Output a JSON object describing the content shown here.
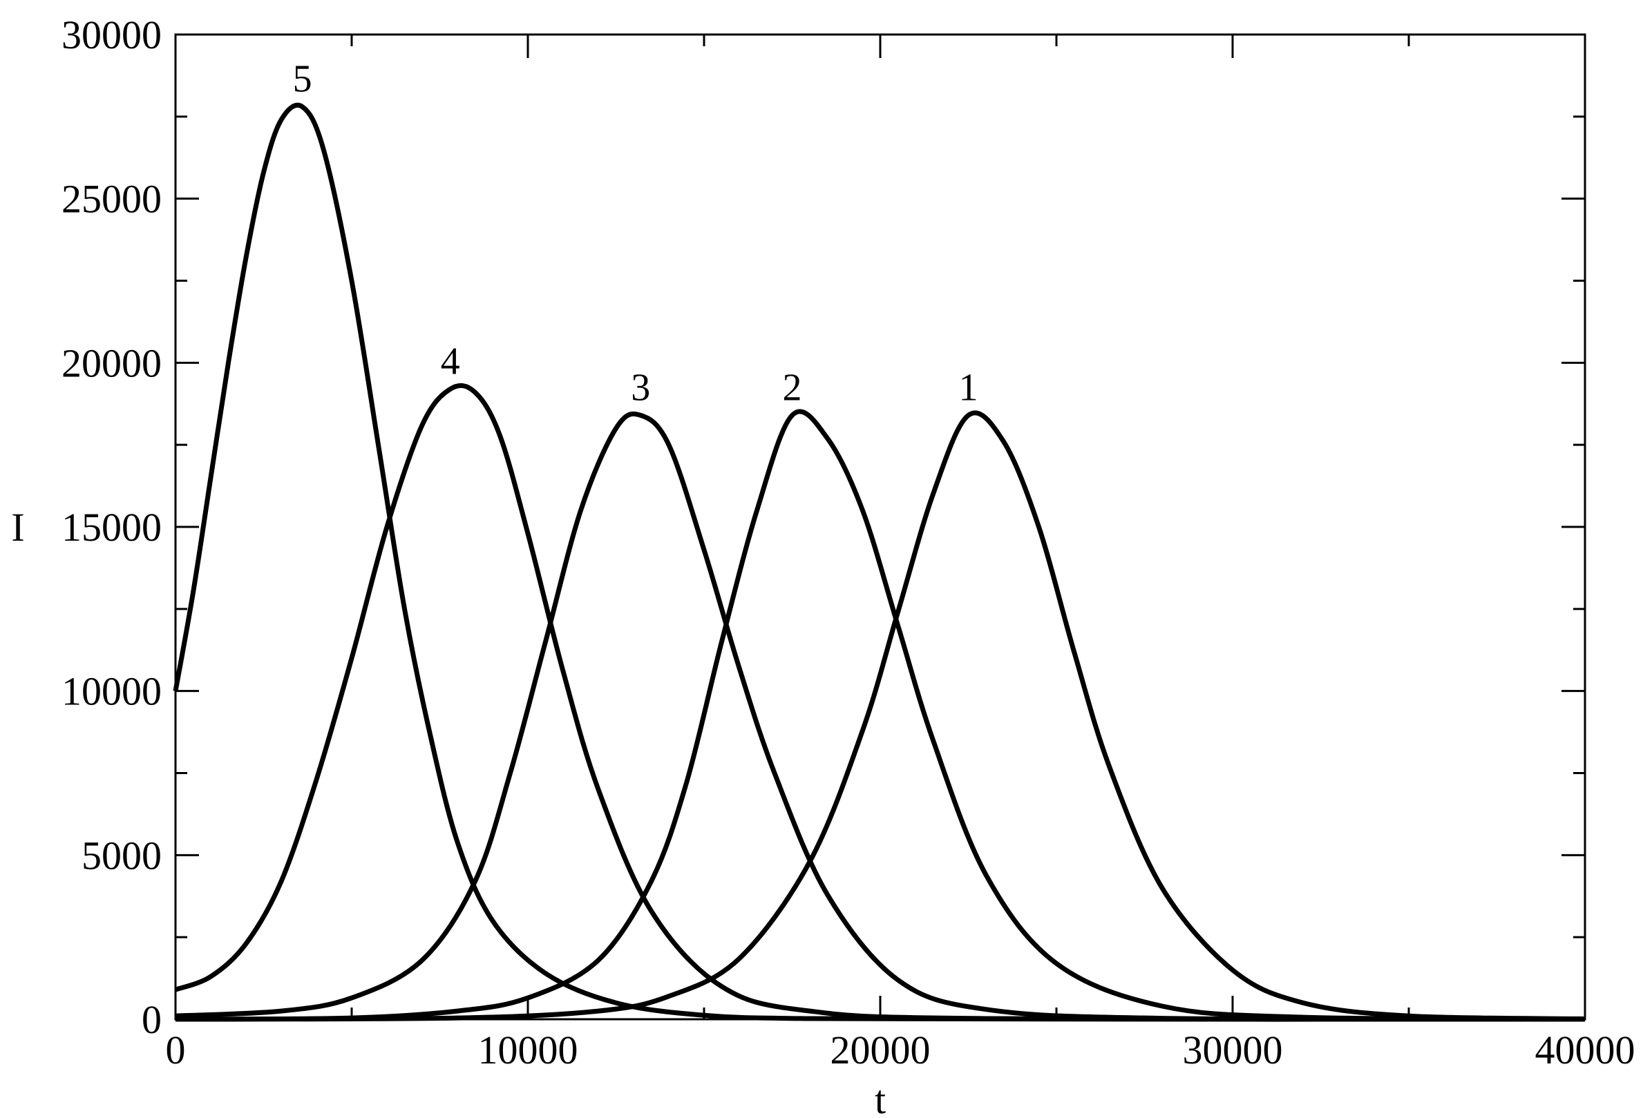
{
  "chart_data": {
    "type": "line",
    "title": "",
    "xlabel": "t",
    "ylabel": "I",
    "xlim": [
      0,
      40000
    ],
    "ylim": [
      0,
      30000
    ],
    "x_ticks": [
      "0",
      "10000",
      "20000",
      "30000",
      "40000"
    ],
    "y_ticks": [
      "0",
      "5000",
      "10000",
      "15000",
      "20000",
      "25000",
      "30000"
    ],
    "grid": false,
    "legend": "none",
    "line_color": "#000000",
    "series": [
      {
        "label": "1",
        "x": [
          0,
          8000,
          12000,
          14000,
          16000,
          18000,
          19500,
          20500,
          21500,
          22500,
          23500,
          24500,
          25500,
          26500,
          28000,
          30000,
          32000,
          35000,
          40000
        ],
        "y": [
          0,
          40,
          250,
          700,
          1850,
          4800,
          8800,
          12400,
          16000,
          18400,
          17600,
          15000,
          11200,
          7700,
          4000,
          1500,
          500,
          100,
          10
        ]
      },
      {
        "label": "2",
        "x": [
          0,
          5000,
          8000,
          10000,
          12000,
          13500,
          14500,
          15500,
          16500,
          17500,
          18500,
          19500,
          20500,
          21500,
          23000,
          25000,
          28000,
          32000,
          40000
        ],
        "y": [
          0,
          40,
          250,
          650,
          1800,
          4200,
          7200,
          11500,
          15500,
          18400,
          17700,
          15500,
          12000,
          8500,
          4400,
          1700,
          400,
          60,
          5
        ]
      },
      {
        "label": "3",
        "x": [
          0,
          3000,
          5000,
          7000,
          8500,
          9500,
          10500,
          11500,
          12500,
          13200,
          14000,
          15000,
          16000,
          17000,
          18500,
          20500,
          23000,
          28000,
          40000
        ],
        "y": [
          100,
          250,
          650,
          1800,
          4200,
          7500,
          11500,
          15500,
          18000,
          18400,
          17500,
          14300,
          10700,
          7500,
          3800,
          1200,
          300,
          30,
          5
        ]
      },
      {
        "label": "4",
        "x": [
          0,
          1000,
          2000,
          3000,
          4000,
          5000,
          6000,
          7000,
          7800,
          8500,
          9200,
          10000,
          11000,
          12000,
          13500,
          15500,
          18000,
          23000,
          40000
        ],
        "y": [
          900,
          1300,
          2300,
          4200,
          7300,
          11000,
          15000,
          18100,
          19200,
          19100,
          17800,
          14800,
          10600,
          7000,
          3300,
          1000,
          250,
          20,
          5
        ]
      },
      {
        "label": "5",
        "x": [
          0,
          500,
          1000,
          1500,
          2000,
          2500,
          3000,
          3600,
          4200,
          5000,
          5800,
          6500,
          7200,
          8000,
          9000,
          10500,
          12500,
          15000,
          18000,
          25000,
          40000
        ],
        "y": [
          10000,
          13000,
          16500,
          20000,
          23200,
          25800,
          27400,
          27800,
          26500,
          22500,
          17200,
          12500,
          8800,
          5400,
          3000,
          1400,
          500,
          120,
          20,
          5,
          0
        ]
      }
    ]
  }
}
